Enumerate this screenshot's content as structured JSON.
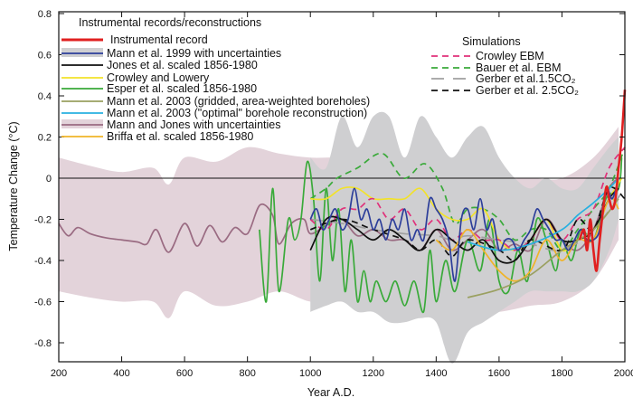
{
  "chart_data": {
    "type": "line",
    "xlabel": "Year A.D.",
    "ylabel": "Temperature Change (°C)",
    "xlim": [
      200,
      2000
    ],
    "ylim": [
      -0.9,
      0.8
    ],
    "xticks": [
      200,
      400,
      600,
      800,
      1000,
      1200,
      1400,
      1600,
      1800,
      2000
    ],
    "xtick_labels": [
      "200",
      "400",
      "600",
      "800",
      "1000",
      "1200",
      "1400",
      "1600",
      "1800",
      "2000"
    ],
    "yticks": [
      0.8,
      0.6,
      0.4,
      0.2,
      0,
      -0.2,
      -0.4,
      -0.6,
      -0.8
    ],
    "ytick_labels": [
      "0.8",
      "0.6",
      "0.4",
      "0.2",
      "0",
      "-0.2",
      "-0.4",
      "-0.6",
      "-0.8"
    ],
    "zero_line": true,
    "legend_reconstructions_title": "Instrumental records/reconstructions",
    "legend_simulations_title": "Simulations",
    "bands": [
      {
        "name": "Mann and Jones with uncertainties",
        "color": "#e3d3da",
        "x": [
          200,
          300,
          400,
          500,
          550,
          600,
          700,
          800,
          900,
          1000,
          1100,
          1200,
          1300,
          1400,
          1500,
          1600,
          1700,
          1800,
          1900,
          1980
        ],
        "upper": [
          0.1,
          0.06,
          0.03,
          0.05,
          -0.03,
          0.1,
          0.08,
          0.15,
          0.12,
          0.1,
          0.1,
          0.08,
          0.1,
          0.05,
          0.05,
          0.0,
          0.0,
          0.0,
          0.1,
          0.25
        ],
        "lower": [
          -0.55,
          -0.58,
          -0.6,
          -0.6,
          -0.68,
          -0.55,
          -0.62,
          -0.6,
          -0.55,
          -0.6,
          -0.6,
          -0.62,
          -0.62,
          -0.6,
          -0.65,
          -0.65,
          -0.62,
          -0.6,
          -0.5,
          -0.3
        ]
      },
      {
        "name": "Mann et al. 1999 with uncertainties",
        "color": "#cfcfd1",
        "x": [
          1000,
          1050,
          1100,
          1150,
          1200,
          1250,
          1300,
          1350,
          1400,
          1450,
          1500,
          1550,
          1600,
          1650,
          1700,
          1750,
          1800,
          1850,
          1900,
          1950,
          1980
        ],
        "upper": [
          0.1,
          0.05,
          0.3,
          0.15,
          0.3,
          0.3,
          0.1,
          0.3,
          0.2,
          0.1,
          0.2,
          0.25,
          0.1,
          0.0,
          -0.05,
          0.0,
          -0.05,
          -0.05,
          0.05,
          0.15,
          0.2
        ],
        "lower": [
          -0.65,
          -0.62,
          -0.6,
          -0.65,
          -0.65,
          -0.7,
          -0.7,
          -0.68,
          -0.7,
          -0.9,
          -0.75,
          -0.7,
          -0.65,
          -0.6,
          -0.55,
          -0.55,
          -0.55,
          -0.55,
          -0.5,
          -0.35,
          -0.2
        ]
      }
    ],
    "series": [
      {
        "name": "Mann and Jones with uncertainties",
        "color": "#9a6b82",
        "dash": "",
        "x": [
          200,
          230,
          260,
          300,
          350,
          400,
          450,
          480,
          510,
          550,
          600,
          640,
          680,
          720,
          760,
          800,
          840,
          880,
          900,
          940,
          980,
          1000,
          1050,
          1100,
          1150,
          1200,
          1250,
          1300,
          1350,
          1400,
          1450,
          1500,
          1550,
          1600,
          1650,
          1700,
          1750,
          1800,
          1850,
          1900,
          1950,
          1980
        ],
        "y": [
          -0.22,
          -0.28,
          -0.24,
          -0.27,
          -0.29,
          -0.3,
          -0.31,
          -0.32,
          -0.25,
          -0.36,
          -0.22,
          -0.33,
          -0.23,
          -0.31,
          -0.24,
          -0.27,
          -0.13,
          -0.18,
          -0.32,
          -0.22,
          -0.2,
          -0.27,
          -0.23,
          -0.2,
          -0.28,
          -0.25,
          -0.3,
          -0.3,
          -0.35,
          -0.25,
          -0.35,
          -0.3,
          -0.25,
          -0.35,
          -0.32,
          -0.35,
          -0.2,
          -0.3,
          -0.35,
          -0.25,
          -0.05,
          0.0
        ]
      },
      {
        "name": "Esper et al. scaled 1856-1980",
        "color": "#3aaa3a",
        "dash": "",
        "x": [
          838,
          860,
          880,
          900,
          930,
          950,
          970,
          990,
          1010,
          1030,
          1050,
          1070,
          1090,
          1110,
          1130,
          1150,
          1170,
          1190,
          1210,
          1240,
          1270,
          1300,
          1330,
          1360,
          1380,
          1400,
          1430,
          1460,
          1500,
          1540,
          1570,
          1600,
          1630,
          1660,
          1690,
          1720,
          1750,
          1780,
          1800,
          1830,
          1860,
          1900,
          1940,
          1980,
          1990
        ],
        "y": [
          -0.25,
          -0.6,
          -0.05,
          -0.55,
          -0.2,
          -0.3,
          -0.2,
          0.08,
          -0.1,
          -0.5,
          -0.05,
          -0.4,
          -0.15,
          -0.55,
          -0.3,
          -0.6,
          -0.45,
          -0.6,
          -0.5,
          -0.6,
          -0.5,
          -0.62,
          -0.5,
          -0.65,
          -0.35,
          -0.6,
          -0.4,
          -0.55,
          -0.3,
          -0.45,
          -0.2,
          -0.5,
          -0.55,
          -0.35,
          -0.5,
          -0.2,
          -0.3,
          -0.45,
          -0.3,
          -0.4,
          -0.25,
          -0.3,
          -0.1,
          -0.05,
          0.1
        ]
      },
      {
        "name": "Bauer et al. EBM",
        "color": "#3aaa3a",
        "dash": "7,5",
        "x": [
          1000,
          1050,
          1085,
          1150,
          1229,
          1297,
          1364,
          1420,
          1459,
          1500,
          1550,
          1600,
          1650,
          1700,
          1750,
          1800,
          1850,
          1900,
          1950,
          2000
        ],
        "y": [
          -0.1,
          -0.05,
          0.0,
          0.05,
          0.12,
          0.0,
          0.07,
          -0.05,
          -0.22,
          -0.15,
          -0.15,
          -0.2,
          -0.3,
          -0.25,
          -0.25,
          -0.35,
          -0.25,
          -0.15,
          -0.05,
          0.15
        ]
      },
      {
        "name": "Crowley and Lowery",
        "color": "#f2e22a",
        "dash": "",
        "x": [
          1000,
          1050,
          1100,
          1150,
          1200,
          1250,
          1300,
          1350,
          1400,
          1450,
          1500,
          1550,
          1600,
          1650,
          1700,
          1750,
          1800,
          1850,
          1900,
          1950,
          1990
        ],
        "y": [
          -0.1,
          -0.1,
          -0.05,
          -0.05,
          -0.1,
          -0.1,
          -0.1,
          -0.05,
          -0.15,
          -0.2,
          -0.2,
          -0.15,
          -0.3,
          -0.35,
          -0.3,
          -0.2,
          -0.35,
          -0.3,
          -0.25,
          -0.1,
          0.0
        ]
      },
      {
        "name": "Gerber et al.1.5CO₂",
        "color": "#a0a0a0",
        "dash": "14,10",
        "x": [
          1000,
          1100,
          1200,
          1300,
          1400,
          1450,
          1500,
          1600,
          1700,
          1800,
          1900,
          2000
        ],
        "y": [
          -0.2,
          -0.22,
          -0.25,
          -0.27,
          -0.28,
          -0.3,
          -0.28,
          -0.3,
          -0.32,
          -0.35,
          -0.25,
          -0.05
        ]
      },
      {
        "name": "Crowley EBM",
        "color": "#e0317a",
        "dash": "7,5",
        "x": [
          1000,
          1050,
          1100,
          1150,
          1200,
          1250,
          1300,
          1350,
          1400,
          1450,
          1500,
          1550,
          1600,
          1650,
          1700,
          1750,
          1800,
          1850,
          1900,
          1950,
          2000
        ],
        "y": [
          -0.2,
          -0.25,
          -0.15,
          -0.15,
          -0.1,
          -0.2,
          -0.15,
          -0.25,
          -0.2,
          -0.3,
          -0.25,
          -0.3,
          -0.3,
          -0.35,
          -0.3,
          -0.2,
          -0.3,
          -0.2,
          -0.15,
          0.05,
          0.15
        ]
      },
      {
        "name": "Jones et al. scaled 1856-1980",
        "color": "#111111",
        "dash": "",
        "x": [
          1000,
          1050,
          1100,
          1150,
          1200,
          1250,
          1300,
          1350,
          1400,
          1450,
          1500,
          1550,
          1600,
          1650,
          1700,
          1750,
          1800,
          1850,
          1900,
          1950,
          1980
        ],
        "y": [
          -0.35,
          -0.2,
          -0.2,
          -0.25,
          -0.3,
          -0.25,
          -0.3,
          -0.35,
          -0.25,
          -0.3,
          -0.35,
          -0.3,
          -0.4,
          -0.4,
          -0.3,
          -0.2,
          -0.3,
          -0.3,
          -0.25,
          -0.1,
          -0.05
        ]
      },
      {
        "name": "Gerber et al. 2.5CO₂",
        "color": "#111111",
        "dash": "7,5",
        "x": [
          1000,
          1100,
          1200,
          1300,
          1350,
          1400,
          1450,
          1500,
          1600,
          1650,
          1700,
          1800,
          1850,
          1900,
          1950,
          2000
        ],
        "y": [
          -0.25,
          -0.2,
          -0.25,
          -0.3,
          -0.35,
          -0.3,
          -0.38,
          -0.3,
          -0.35,
          -0.4,
          -0.3,
          -0.35,
          -0.2,
          -0.25,
          -0.05,
          -0.1
        ]
      },
      {
        "name": "Briffa et al. scaled 1856-1980",
        "color": "#f0b428",
        "dash": "",
        "x": [
          1400,
          1450,
          1500,
          1550,
          1600,
          1650,
          1700,
          1750,
          1800,
          1850,
          1900,
          1950,
          1980
        ],
        "y": [
          -0.3,
          -0.35,
          -0.25,
          -0.35,
          -0.45,
          -0.5,
          -0.45,
          -0.3,
          -0.4,
          -0.3,
          -0.3,
          -0.1,
          -0.15
        ]
      },
      {
        "name": "Mann et al. 2003 (gridded, area-weighted boreholes)",
        "color": "#9aa060",
        "dash": "",
        "x": [
          1500,
          1600,
          1700,
          1800,
          1900,
          1980
        ],
        "y": [
          -0.58,
          -0.54,
          -0.47,
          -0.35,
          -0.25,
          -0.1
        ]
      },
      {
        "name": "Mann et al. 2003 (\"optimal\" borehole reconstruction)",
        "color": "#28b0e0",
        "dash": "",
        "x": [
          1500,
          1600,
          1700,
          1800,
          1850,
          1900,
          1950,
          1980
        ],
        "y": [
          -0.31,
          -0.35,
          -0.32,
          -0.25,
          -0.18,
          -0.12,
          -0.05,
          0.0
        ]
      },
      {
        "name": "Mann et al. 1999 with uncertainties",
        "color": "#2c3e9a",
        "dash": "",
        "x": [
          1000,
          1020,
          1040,
          1060,
          1080,
          1100,
          1120,
          1140,
          1160,
          1180,
          1200,
          1220,
          1240,
          1260,
          1280,
          1300,
          1320,
          1340,
          1360,
          1380,
          1400,
          1420,
          1440,
          1460,
          1480,
          1500,
          1520,
          1540,
          1560,
          1580,
          1600,
          1620,
          1640,
          1660,
          1680,
          1700,
          1720,
          1740,
          1760,
          1780,
          1800,
          1820,
          1840,
          1860,
          1880,
          1900,
          1920,
          1940,
          1960,
          1980
        ],
        "y": [
          -0.2,
          -0.15,
          -0.25,
          -0.2,
          -0.15,
          -0.25,
          -0.2,
          -0.05,
          -0.2,
          -0.15,
          -0.25,
          -0.2,
          -0.3,
          -0.2,
          -0.25,
          -0.15,
          -0.3,
          -0.25,
          -0.3,
          -0.1,
          -0.15,
          -0.2,
          -0.3,
          -0.5,
          -0.2,
          -0.15,
          -0.25,
          -0.1,
          -0.25,
          -0.2,
          -0.35,
          -0.3,
          -0.3,
          -0.35,
          -0.3,
          -0.25,
          -0.15,
          -0.2,
          -0.25,
          -0.3,
          -0.3,
          -0.35,
          -0.3,
          -0.25,
          -0.3,
          -0.3,
          -0.25,
          -0.05,
          -0.1,
          0.0
        ]
      },
      {
        "name": "Instrumental record",
        "color": "#e02020",
        "dash": "",
        "x": [
          1856,
          1870,
          1880,
          1890,
          1900,
          1910,
          1920,
          1940,
          1950,
          1960,
          1970,
          1980,
          1990,
          2000
        ],
        "y": [
          -0.3,
          -0.25,
          -0.35,
          -0.2,
          -0.35,
          -0.45,
          -0.3,
          -0.05,
          -0.1,
          -0.15,
          -0.1,
          0.05,
          0.2,
          0.43
        ]
      }
    ]
  },
  "legend": {
    "reconstructions": [
      {
        "label": "Instrumental record",
        "color": "#e02020"
      },
      {
        "label": "Mann et al. 1999 with uncertainties",
        "color": "#2c3e9a",
        "band": "#cfcfd1"
      },
      {
        "label": "Jones et al. scaled 1856-1980",
        "color": "#111111"
      },
      {
        "label": "Crowley and Lowery",
        "color": "#f2e22a"
      },
      {
        "label": "Esper et al. scaled 1856-1980",
        "color": "#3aaa3a"
      },
      {
        "label": "Mann et al. 2003 (gridded, area-weighted boreholes)",
        "color": "#9aa060"
      },
      {
        "label": "Mann et al. 2003 (\"optimal\" borehole reconstruction)",
        "color": "#28b0e0"
      },
      {
        "label": "Mann and Jones with uncertainties",
        "color": "#9a6b82",
        "band": "#e3d3da"
      },
      {
        "label": "Briffa et al. scaled 1856-1980",
        "color": "#f0b428"
      }
    ],
    "simulations": [
      {
        "label": "Crowley EBM",
        "color": "#e0317a",
        "dash": "7,5"
      },
      {
        "label": "Bauer et al. EBM",
        "color": "#3aaa3a",
        "dash": "7,5"
      },
      {
        "label": "Gerber et al.1.5CO₂",
        "color": "#a0a0a0",
        "dash": "14,10"
      },
      {
        "label": "Gerber et al. 2.5CO₂",
        "color": "#111111",
        "dash": "7,5"
      }
    ]
  }
}
